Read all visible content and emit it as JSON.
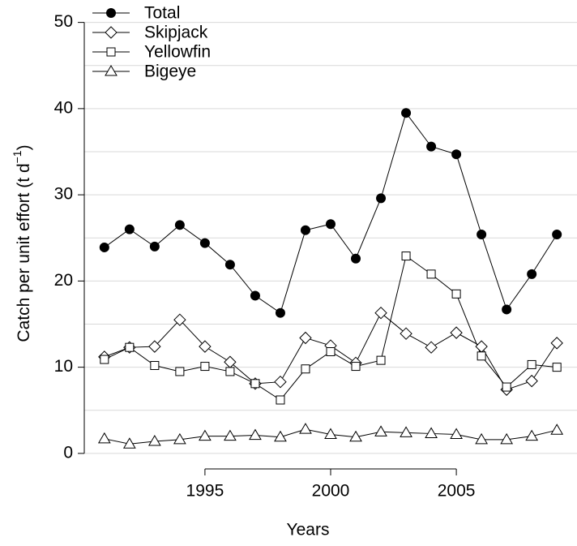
{
  "chart_data": {
    "type": "line",
    "xlabel": "Years",
    "ylabel": {
      "text": "Catch per unit effort (t d",
      "superscript": "−1",
      "close": ")"
    },
    "x": [
      1991,
      1992,
      1993,
      1994,
      1995,
      1996,
      1997,
      1998,
      1999,
      2000,
      2001,
      2002,
      2003,
      2004,
      2005,
      2006,
      2007,
      2008,
      2009
    ],
    "xlim": [
      1990.2,
      2009.8
    ],
    "xticks": [
      1995,
      2000,
      2005
    ],
    "ylim": [
      -1.8,
      52.6
    ],
    "yticks": [
      0,
      10,
      20,
      30,
      40,
      50
    ],
    "ygrid": [
      0,
      5,
      10,
      15,
      20,
      25,
      30,
      35,
      40,
      45,
      50
    ],
    "legend": "top-left",
    "series": [
      {
        "name": "Total",
        "color": "#000000",
        "marker": "filled-circle",
        "values": [
          23.9,
          26.0,
          24.0,
          26.5,
          24.4,
          21.9,
          18.3,
          16.3,
          25.9,
          26.6,
          22.6,
          29.6,
          39.5,
          35.6,
          34.7,
          25.4,
          16.7,
          20.8,
          25.4
        ]
      },
      {
        "name": "Skipjack",
        "color": "#000000",
        "marker": "diamond",
        "values": [
          11.2,
          12.3,
          12.4,
          15.5,
          12.4,
          10.6,
          8.1,
          8.3,
          13.4,
          12.5,
          10.5,
          16.3,
          13.9,
          12.3,
          14.0,
          12.4,
          7.4,
          8.4,
          12.8
        ]
      },
      {
        "name": "Yellowfin",
        "color": "#000000",
        "marker": "square",
        "values": [
          10.9,
          12.3,
          10.2,
          9.5,
          10.1,
          9.5,
          8.1,
          6.2,
          9.8,
          11.8,
          10.1,
          10.8,
          22.9,
          20.8,
          18.5,
          11.3,
          7.7,
          10.3,
          10.0
        ]
      },
      {
        "name": "Bigeye",
        "color": "#000000",
        "marker": "triangle",
        "values": [
          1.7,
          1.1,
          1.4,
          1.6,
          2.0,
          2.0,
          2.1,
          1.9,
          2.8,
          2.2,
          1.9,
          2.5,
          2.4,
          2.3,
          2.2,
          1.6,
          1.6,
          2.0,
          2.7
        ]
      }
    ]
  }
}
